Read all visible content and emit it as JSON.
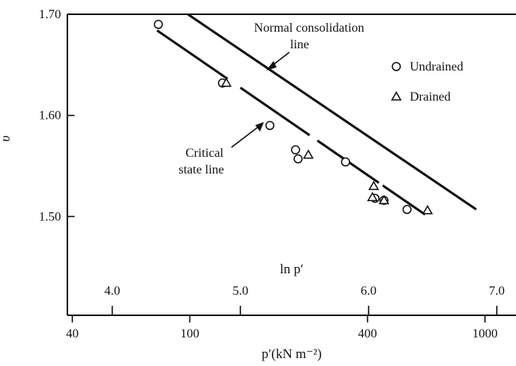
{
  "chart_data": {
    "type": "scatter",
    "title": "",
    "ylabel": "υ",
    "xlabel_top": "ln p′",
    "xlabel_bottom": "p′(kN m⁻²)",
    "y_ticks": [
      "1.70",
      "1.60",
      "1.50"
    ],
    "ylim": [
      1.465,
      1.7
    ],
    "lnp_ticks": [
      "4.0",
      "5.0",
      "6.0",
      "7.0"
    ],
    "p_ticks": [
      "40",
      "100",
      "400",
      "1000"
    ],
    "xlim_lnp": [
      3.65,
      7.15
    ],
    "series": [
      {
        "name": "Undrained",
        "marker": "circle",
        "points": [
          {
            "x": 4.36,
            "y": 1.69
          },
          {
            "x": 4.86,
            "y": 1.632
          },
          {
            "x": 5.23,
            "y": 1.59
          },
          {
            "x": 5.43,
            "y": 1.566
          },
          {
            "x": 5.45,
            "y": 1.557
          },
          {
            "x": 5.82,
            "y": 1.554
          },
          {
            "x": 6.05,
            "y": 1.518
          },
          {
            "x": 6.12,
            "y": 1.516
          },
          {
            "x": 6.3,
            "y": 1.507
          }
        ]
      },
      {
        "name": "Drained",
        "marker": "triangle",
        "points": [
          {
            "x": 4.89,
            "y": 1.632
          },
          {
            "x": 5.53,
            "y": 1.561
          },
          {
            "x": 6.04,
            "y": 1.53
          },
          {
            "x": 6.03,
            "y": 1.519
          },
          {
            "x": 6.12,
            "y": 1.516
          },
          {
            "x": 6.46,
            "y": 1.506
          }
        ]
      }
    ],
    "lines": [
      {
        "name": "Normal consolidation line",
        "start": {
          "x": 4.59,
          "y": 1.7
        },
        "end": {
          "x": 6.84,
          "y": 1.507
        }
      },
      {
        "name": "Critical state line",
        "start": {
          "x": 4.35,
          "y": 1.684
        },
        "end": {
          "x": 6.44,
          "y": 1.502
        },
        "gaps": [
          [
            4.9,
            5.0
          ],
          [
            5.54,
            5.6
          ],
          [
            6.08,
            6.11
          ]
        ]
      }
    ],
    "annotations": {
      "normal_consolidation": [
        "Normal consolidation",
        "line"
      ],
      "critical_state": [
        "Critical",
        "state line"
      ]
    },
    "legend": {
      "position": "top-right"
    }
  }
}
